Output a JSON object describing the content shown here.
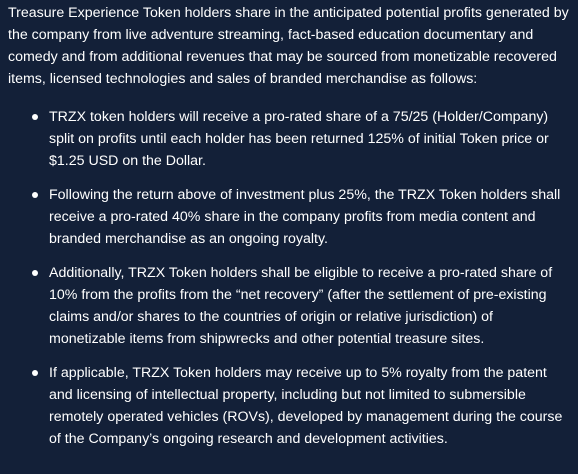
{
  "intro": "Treasure Experience Token holders share in the anticipated potential profits generated by the company from live adventure streaming, fact-based education documentary and comedy and from additional revenues that may be sourced from monetizable recovered items, licensed technologies and sales of branded merchandise as follows:",
  "items": [
    "TRZX token holders will receive a pro-rated share of a 75/25 (Holder/Company) split on profits until each holder has been returned 125% of initial Token price or $1.25 USD on the Dollar.",
    "Following the return above of investment plus 25%, the TRZX Token holders shall receive a pro-rated 40% share in the company profits from media content and branded merchandise as an ongoing royalty.",
    "Additionally, TRZX Token holders shall be eligible to receive a pro-rated share of 10% from the profits from the “net recovery” (after the settlement of pre-existing claims and/or shares to the countries of origin or relative jurisdiction) of monetizable items from shipwrecks and other potential treasure sites.",
    "If applicable, TRZX Token holders may receive up to 5% royalty from the patent and licensing of intellectual property, including but not limited to submersible remotely operated vehicles (ROVs), developed by management during the course of the Company’s ongoing research and development activities."
  ],
  "colors": {
    "background": "#132038",
    "text": "#ffffff"
  }
}
